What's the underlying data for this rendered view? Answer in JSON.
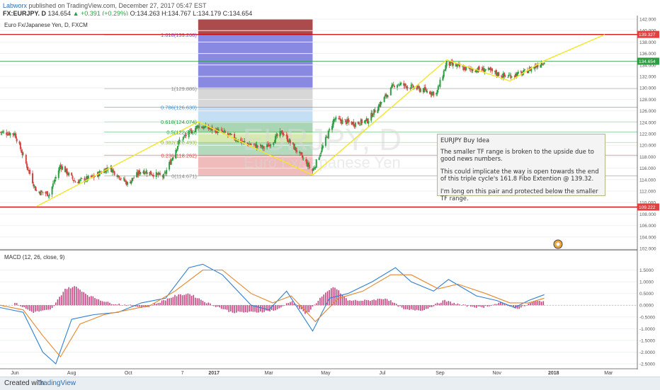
{
  "header": {
    "author": "Labworx",
    "published": "published on TradingView.com, December 27, 2017 05:47 EST",
    "symbol_line": "FX:EURJPY, D",
    "price": "134.654",
    "change": "▲ +0.391 (+0.29%)",
    "ohlc": "O:134.263 H:134.767 L:134.179 C:134.654"
  },
  "legend": {
    "series_title": "Euro Fx/Japanese Yen, D, FXCM",
    "macd_title": "MACD (12, 26, close, 9)",
    "watermark_symbol": "EURJPY, D",
    "watermark_name": "Euro Fx/Japanese Yen"
  },
  "idea": {
    "title": "EURJPY Buy Idea",
    "p1": "The smaller TF range is broken to the upside due to good news numbers.",
    "p2": "This could implicate the way is open towards the end of this triple cycle's 161.8 Fibo Extention @ 139.32.",
    "p3": "I'm long on this pair and protected below the smaller TF range."
  },
  "footer": {
    "created": "Created with",
    "brand": "TradingView"
  },
  "colors": {
    "up": "#2e9e44",
    "down": "#d64541",
    "trend": "#f2e627",
    "macd": "#2f7fd1",
    "signal": "#e6862a",
    "hist": "#b8256a",
    "hline": "#cc0000",
    "current": "#2e9e44",
    "priceaxis_label_red": "#e34040"
  },
  "chart_data": [
    {
      "type": "candlestick",
      "title": "Euro Fx/Japanese Yen, D, FXCM",
      "x_ticks": [
        "Jun",
        "Aug",
        "Oct",
        "7",
        "2017",
        "Mar",
        "May",
        "Jul",
        "Sep",
        "Nov",
        "2018",
        "Mar"
      ],
      "y_ticks": [
        "142.000",
        "140.000",
        "138.000",
        "136.000",
        "134.000",
        "132.000",
        "130.000",
        "128.000",
        "126.000",
        "124.000",
        "122.000",
        "120.000",
        "118.000",
        "116.000",
        "114.000",
        "112.000",
        "110.000",
        "108.000",
        "106.000",
        "104.000",
        "102.000"
      ],
      "ylim": [
        102,
        142
      ],
      "price_labels": [
        {
          "value": 139.327,
          "text": "139.327",
          "color": "#e34040"
        },
        {
          "value": 134.654,
          "text": "134.654",
          "color": "#2e9e44"
        },
        {
          "value": 109.222,
          "text": "109.222",
          "color": "#e34040"
        }
      ],
      "horizontal_lines": [
        139.32,
        134.654,
        109.222
      ],
      "fib_levels": [
        {
          "label": "1.618(139.268)",
          "value": 139.268
        },
        {
          "label": "1(129.886)",
          "value": 129.886
        },
        {
          "label": "0.786(126.630)",
          "value": 126.63
        },
        {
          "label": "0.618(124.074)",
          "value": 124.074
        },
        {
          "label": "0.5(122.283)",
          "value": 122.283
        },
        {
          "label": "0.382(120.493)",
          "value": 120.493
        },
        {
          "label": "0.236(118.262)",
          "value": 118.262
        },
        {
          "label": "0(114.671)",
          "value": 114.671
        }
      ],
      "trend_points": [
        {
          "date": "2016-06-24",
          "value": 109.3
        },
        {
          "date": "2016-12-15",
          "value": 124.1
        },
        {
          "date": "2017-04-17",
          "value": 114.8
        },
        {
          "date": "2017-09-08",
          "value": 134.9
        },
        {
          "date": "2017-11-15",
          "value": 131.2
        },
        {
          "date": "2017-12-20",
          "value": 134.6
        },
        {
          "date": "2018-02-25",
          "value": 139.3
        }
      ],
      "close_path": [
        {
          "date": "2016-05-16",
          "value": 122.3
        },
        {
          "date": "2016-06-01",
          "value": 122.0
        },
        {
          "date": "2016-06-24",
          "value": 112.0
        },
        {
          "date": "2016-07-08",
          "value": 111.5
        },
        {
          "date": "2016-07-20",
          "value": 116.5
        },
        {
          "date": "2016-08-05",
          "value": 113.6
        },
        {
          "date": "2016-08-25",
          "value": 114.5
        },
        {
          "date": "2016-09-10",
          "value": 116.2
        },
        {
          "date": "2016-09-30",
          "value": 113.3
        },
        {
          "date": "2016-10-15",
          "value": 115.6
        },
        {
          "date": "2016-11-08",
          "value": 114.5
        },
        {
          "date": "2016-11-25",
          "value": 120.8
        },
        {
          "date": "2016-12-15",
          "value": 123.4
        },
        {
          "date": "2017-01-10",
          "value": 122.3
        },
        {
          "date": "2017-02-01",
          "value": 120.5
        },
        {
          "date": "2017-02-25",
          "value": 119.5
        },
        {
          "date": "2017-03-15",
          "value": 122.3
        },
        {
          "date": "2017-04-17",
          "value": 115.5
        },
        {
          "date": "2017-05-10",
          "value": 124.5
        },
        {
          "date": "2017-06-01",
          "value": 123.8
        },
        {
          "date": "2017-06-15",
          "value": 124.3
        },
        {
          "date": "2017-07-15",
          "value": 130.8
        },
        {
          "date": "2017-08-05",
          "value": 130.0
        },
        {
          "date": "2017-08-28",
          "value": 129.0
        },
        {
          "date": "2017-09-08",
          "value": 134.3
        },
        {
          "date": "2017-10-01",
          "value": 133.2
        },
        {
          "date": "2017-10-20",
          "value": 133.2
        },
        {
          "date": "2017-11-10",
          "value": 132.0
        },
        {
          "date": "2017-11-28",
          "value": 132.5
        },
        {
          "date": "2017-12-22",
          "value": 134.654
        }
      ]
    },
    {
      "type": "line",
      "title": "MACD (12, 26, close, 9)",
      "y_ticks": [
        "1.5000",
        "1.0000",
        "0.5000",
        "0.0000",
        "-0.5000",
        "-1.0000",
        "-1.5000",
        "-2.0000",
        "-2.5000"
      ],
      "ylim": [
        -2.65,
        2.15
      ],
      "series": [
        {
          "color": "#2f7fd1",
          "points": [
            {
              "date": "2016-05-16",
              "value": -0.1
            },
            {
              "date": "2016-06-10",
              "value": -0.3
            },
            {
              "date": "2016-07-01",
              "value": -2.0
            },
            {
              "date": "2016-07-15",
              "value": -2.5
            },
            {
              "date": "2016-08-01",
              "value": -0.6
            },
            {
              "date": "2016-08-25",
              "value": -0.4
            },
            {
              "date": "2016-09-20",
              "value": -0.3
            },
            {
              "date": "2016-10-15",
              "value": 0.1
            },
            {
              "date": "2016-11-10",
              "value": 0.3
            },
            {
              "date": "2016-12-05",
              "value": 1.6
            },
            {
              "date": "2016-12-20",
              "value": 1.75
            },
            {
              "date": "2017-01-10",
              "value": 1.3
            },
            {
              "date": "2017-02-10",
              "value": 0.0
            },
            {
              "date": "2017-03-01",
              "value": -0.2
            },
            {
              "date": "2017-03-20",
              "value": 0.6
            },
            {
              "date": "2017-04-17",
              "value": -1.1
            },
            {
              "date": "2017-05-05",
              "value": 0.3
            },
            {
              "date": "2017-05-25",
              "value": 0.5
            },
            {
              "date": "2017-06-20",
              "value": 1.0
            },
            {
              "date": "2017-07-15",
              "value": 1.6
            },
            {
              "date": "2017-08-01",
              "value": 1.0
            },
            {
              "date": "2017-08-25",
              "value": 0.6
            },
            {
              "date": "2017-09-10",
              "value": 1.1
            },
            {
              "date": "2017-10-10",
              "value": 0.4
            },
            {
              "date": "2017-11-01",
              "value": 0.2
            },
            {
              "date": "2017-11-20",
              "value": -0.1
            },
            {
              "date": "2017-12-05",
              "value": 0.2
            },
            {
              "date": "2017-12-22",
              "value": 0.45
            }
          ]
        },
        {
          "color": "#e6862a",
          "points": [
            {
              "date": "2016-05-16",
              "value": 0.0
            },
            {
              "date": "2016-06-10",
              "value": -0.2
            },
            {
              "date": "2016-07-01",
              "value": -1.3
            },
            {
              "date": "2016-07-20",
              "value": -2.2
            },
            {
              "date": "2016-08-10",
              "value": -0.8
            },
            {
              "date": "2016-09-05",
              "value": -0.4
            },
            {
              "date": "2016-10-01",
              "value": -0.2
            },
            {
              "date": "2016-10-25",
              "value": 0.0
            },
            {
              "date": "2016-11-20",
              "value": 0.6
            },
            {
              "date": "2016-12-20",
              "value": 1.5
            },
            {
              "date": "2017-01-10",
              "value": 1.5
            },
            {
              "date": "2017-02-10",
              "value": 0.5
            },
            {
              "date": "2017-03-05",
              "value": 0.1
            },
            {
              "date": "2017-03-25",
              "value": 0.4
            },
            {
              "date": "2017-04-20",
              "value": -0.7
            },
            {
              "date": "2017-05-15",
              "value": 0.3
            },
            {
              "date": "2017-06-10",
              "value": 0.6
            },
            {
              "date": "2017-07-10",
              "value": 1.3
            },
            {
              "date": "2017-08-01",
              "value": 1.3
            },
            {
              "date": "2017-08-30",
              "value": 0.7
            },
            {
              "date": "2017-09-20",
              "value": 0.9
            },
            {
              "date": "2017-10-20",
              "value": 0.5
            },
            {
              "date": "2017-11-15",
              "value": 0.1
            },
            {
              "date": "2017-12-05",
              "value": 0.1
            },
            {
              "date": "2017-12-22",
              "value": 0.3
            }
          ]
        }
      ],
      "histogram": [
        {
          "date": "2016-06-01",
          "value": 0.1
        },
        {
          "date": "2016-06-20",
          "value": -0.3
        },
        {
          "date": "2016-07-10",
          "value": -0.2
        },
        {
          "date": "2016-07-25",
          "value": 0.7
        },
        {
          "date": "2016-08-05",
          "value": 0.8
        },
        {
          "date": "2016-08-20",
          "value": 0.4
        },
        {
          "date": "2016-09-10",
          "value": 0.1
        },
        {
          "date": "2016-10-01",
          "value": 0.0
        },
        {
          "date": "2016-10-20",
          "value": -0.1
        },
        {
          "date": "2016-11-20",
          "value": 0.4
        },
        {
          "date": "2016-12-05",
          "value": 0.5
        },
        {
          "date": "2016-12-25",
          "value": 0.1
        },
        {
          "date": "2017-01-20",
          "value": -0.3
        },
        {
          "date": "2017-02-15",
          "value": -0.3
        },
        {
          "date": "2017-03-10",
          "value": -0.2
        },
        {
          "date": "2017-03-25",
          "value": 0.2
        },
        {
          "date": "2017-04-10",
          "value": -0.4
        },
        {
          "date": "2017-04-25",
          "value": 0.3
        },
        {
          "date": "2017-05-10",
          "value": 0.8
        },
        {
          "date": "2017-05-25",
          "value": 0.2
        },
        {
          "date": "2017-06-15",
          "value": 0.2
        },
        {
          "date": "2017-07-05",
          "value": 0.3
        },
        {
          "date": "2017-07-25",
          "value": -0.2
        },
        {
          "date": "2017-08-15",
          "value": -0.2
        },
        {
          "date": "2017-09-05",
          "value": 0.2
        },
        {
          "date": "2017-09-25",
          "value": 0.0
        },
        {
          "date": "2017-10-15",
          "value": -0.1
        },
        {
          "date": "2017-11-05",
          "value": 0.1
        },
        {
          "date": "2017-11-25",
          "value": -0.15
        },
        {
          "date": "2017-12-10",
          "value": 0.15
        },
        {
          "date": "2017-12-22",
          "value": 0.2
        }
      ]
    }
  ]
}
